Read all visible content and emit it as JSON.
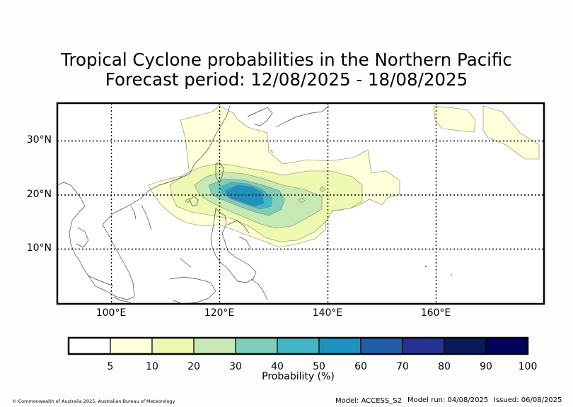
{
  "title_line1": "Tropical Cyclone probabilities in the Northern Pacific",
  "title_line2": "Forecast period: 12/08/2025 - 18/08/2025",
  "map": {
    "lon_range": [
      90,
      180
    ],
    "lat_range": [
      0,
      37
    ],
    "lat_ticks": [
      {
        "value": 30,
        "label": "30°N"
      },
      {
        "value": 20,
        "label": "20°N"
      },
      {
        "value": 10,
        "label": "10°N"
      }
    ],
    "lon_ticks": [
      {
        "value": 100,
        "label": "100°E"
      },
      {
        "value": 120,
        "label": "120°E"
      },
      {
        "value": 140,
        "label": "140°E"
      },
      {
        "value": 160,
        "label": "160°E"
      }
    ],
    "gridlines": "dotted"
  },
  "colorbar": {
    "label": "Probability (%)",
    "ticks": [
      "5",
      "10",
      "20",
      "30",
      "40",
      "50",
      "60",
      "70",
      "80",
      "90",
      "100"
    ],
    "colors": [
      "#ffffff",
      "#ffffd9",
      "#edf8b1",
      "#c7e9b4",
      "#7fcdbb",
      "#41b6c4",
      "#1d91c0",
      "#225ea8",
      "#253494",
      "#081d58",
      "#03035e"
    ]
  },
  "footer": {
    "copyright": "© Commonwealth of Australia 2025, Australian Bureau of Meteorology",
    "model": "Model: ACCESS_S2",
    "model_run": "Model run: 04/08/2025",
    "issued": "Issued: 06/08/2025"
  }
}
